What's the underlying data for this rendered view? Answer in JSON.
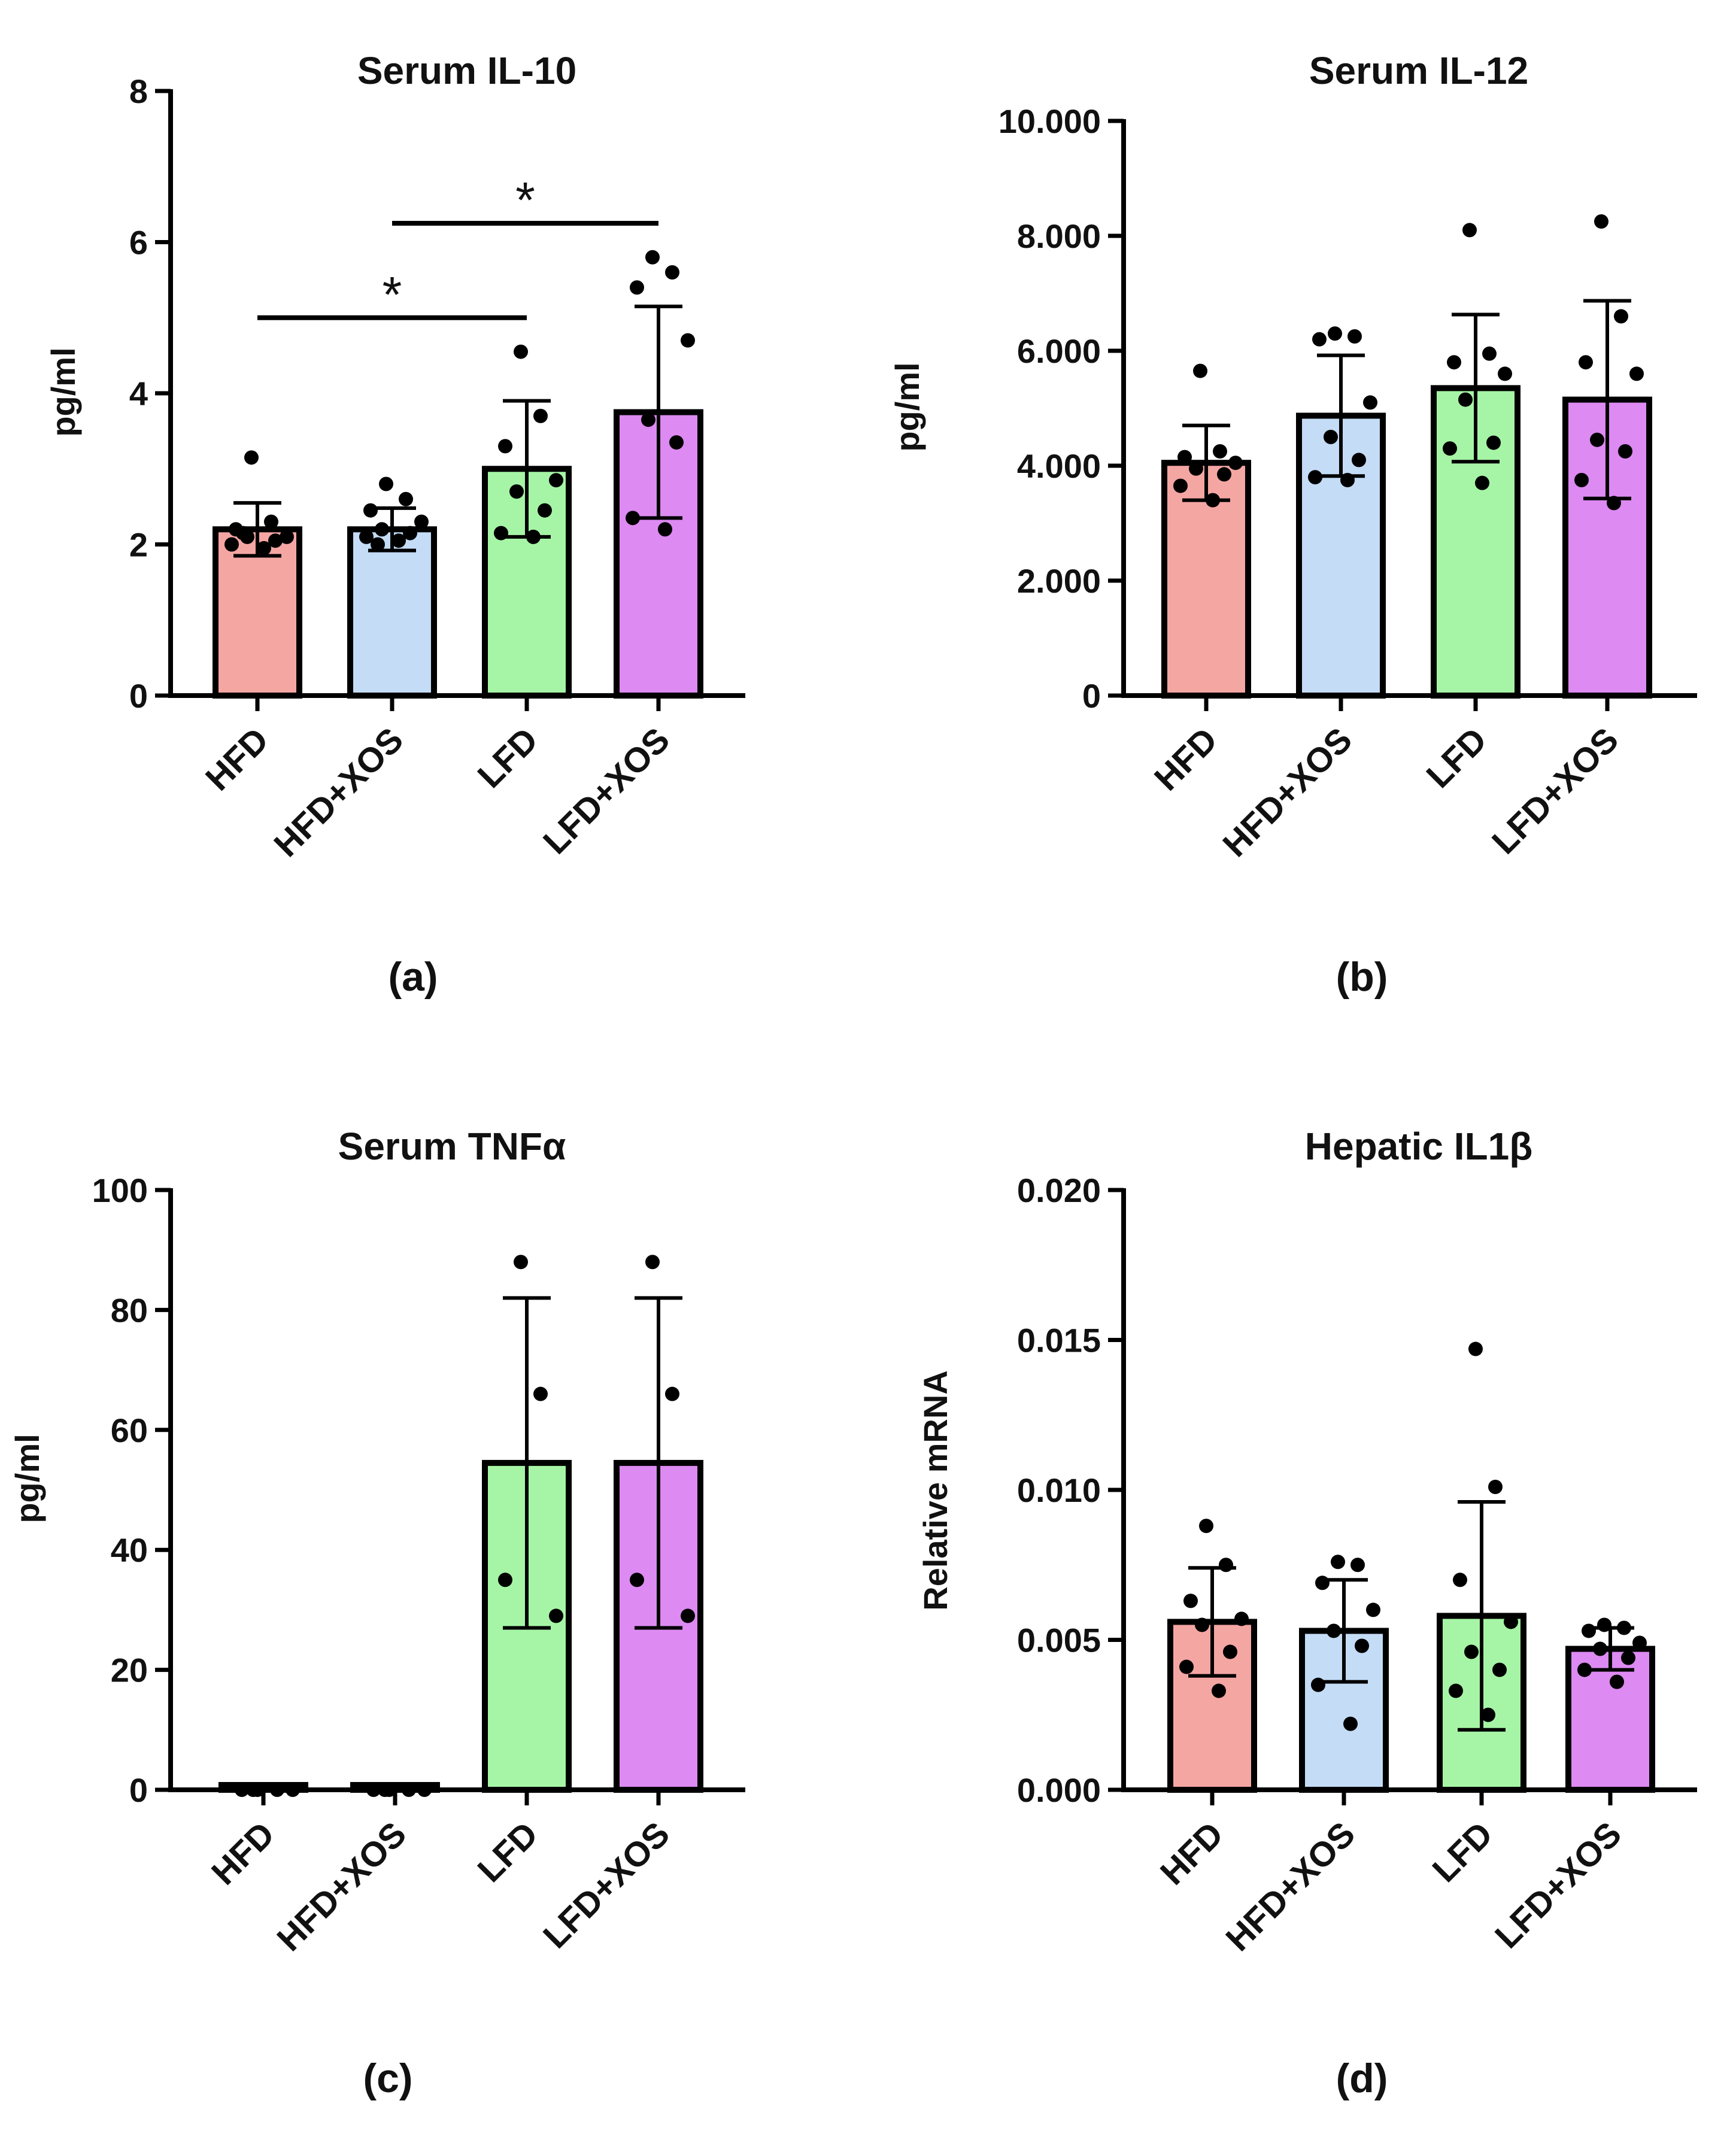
{
  "figure": {
    "type": "figure",
    "panel_count": 4
  },
  "colors": {
    "HFD": "#f4a6a3",
    "HFD+XOS": "#c4dcf6",
    "LFD": "#a6f5a6",
    "LFD+XOS": "#dd8af2",
    "stroke": "#000000"
  },
  "chart_data": [
    {
      "id": "a",
      "type": "bar",
      "title": "Serum IL-10",
      "panel_label": "(a)",
      "ylabel": "pg/ml",
      "xlabel": "",
      "categories": [
        "HFD",
        "HFD+XOS",
        "LFD",
        "LFD+XOS"
      ],
      "ylim": [
        0,
        8
      ],
      "yticks": [
        0,
        2,
        4,
        6,
        8
      ],
      "ytick_labels": [
        "0",
        "2",
        "4",
        "6",
        "8"
      ],
      "values": [
        2.2,
        2.2,
        3.0,
        3.75
      ],
      "error": [
        0.35,
        0.28,
        0.9,
        1.4
      ],
      "points": [
        [
          3.15,
          2.3,
          2.2,
          2.1,
          2.1,
          2.05,
          2.0,
          1.95,
          2.15
        ],
        [
          2.8,
          2.6,
          2.45,
          2.3,
          2.2,
          2.15,
          2.1,
          2.05,
          2.0
        ],
        [
          4.55,
          3.7,
          3.3,
          2.85,
          2.7,
          2.45,
          2.15,
          2.1
        ],
        [
          5.8,
          5.6,
          5.4,
          4.7,
          3.65,
          3.35,
          2.35,
          2.2
        ]
      ],
      "significance": [
        {
          "from": "HFD",
          "to": "LFD",
          "y": 5.0,
          "label": "*"
        },
        {
          "from": "HFD+XOS",
          "to": "LFD+XOS",
          "y": 6.25,
          "label": "*"
        }
      ]
    },
    {
      "id": "b",
      "type": "bar",
      "title": "Serum IL-12",
      "panel_label": "(b)",
      "ylabel": "pg/ml",
      "xlabel": "",
      "categories": [
        "HFD",
        "HFD+XOS",
        "LFD",
        "LFD+XOS"
      ],
      "ylim": [
        0,
        10000
      ],
      "yticks": [
        0,
        2000,
        4000,
        6000,
        8000,
        10000
      ],
      "ytick_labels": [
        "0",
        "2.000",
        "4.000",
        "6.000",
        "8.000",
        "10.000"
      ],
      "values": [
        4050,
        4870,
        5350,
        5150
      ],
      "error": [
        650,
        1050,
        1280,
        1720
      ],
      "points": [
        [
          5650,
          4250,
          4150,
          4050,
          3950,
          3850,
          3650,
          3400
        ],
        [
          6300,
          6250,
          6200,
          5100,
          4500,
          4100,
          3800,
          3750
        ],
        [
          8100,
          5950,
          5800,
          5600,
          5150,
          4400,
          4300,
          3700
        ],
        [
          8250,
          6600,
          5800,
          5600,
          4450,
          4250,
          3750,
          3350
        ]
      ],
      "significance": []
    },
    {
      "id": "c",
      "type": "bar",
      "title": "Serum TNFα",
      "panel_label": "(c)",
      "ylabel": "pg/ml",
      "xlabel": "",
      "categories": [
        "HFD",
        "HFD+XOS",
        "LFD",
        "LFD+XOS"
      ],
      "ylim": [
        0,
        100
      ],
      "yticks": [
        0,
        20,
        40,
        60,
        80,
        100
      ],
      "ytick_labels": [
        "0",
        "20",
        "40",
        "60",
        "80",
        "100"
      ],
      "values": [
        0.8,
        0.8,
        54.5,
        54.5
      ],
      "error": [
        0,
        0,
        27.5,
        27.5
      ],
      "points": [
        [
          0,
          0,
          0,
          0,
          0
        ],
        [
          0,
          0,
          0,
          0,
          0
        ],
        [
          88,
          66,
          35,
          29
        ],
        [
          88,
          66,
          35,
          29
        ]
      ],
      "significance": []
    },
    {
      "id": "d",
      "type": "bar",
      "title": "Hepatic IL1β",
      "panel_label": "(d)",
      "ylabel": "Relative mRNA",
      "xlabel": "",
      "categories": [
        "HFD",
        "HFD+XOS",
        "LFD",
        "LFD+XOS"
      ],
      "ylim": [
        0,
        0.02
      ],
      "yticks": [
        0,
        0.005,
        0.01,
        0.015,
        0.02
      ],
      "ytick_labels": [
        "0.000",
        "0.005",
        "0.010",
        "0.015",
        "0.020"
      ],
      "values": [
        0.0056,
        0.0053,
        0.0058,
        0.0047
      ],
      "error": [
        0.0018,
        0.0017,
        0.0038,
        0.0007
      ],
      "points": [
        [
          0.0088,
          0.0075,
          0.0063,
          0.0057,
          0.0055,
          0.0046,
          0.0041,
          0.0033
        ],
        [
          0.0076,
          0.0075,
          0.0069,
          0.006,
          0.0053,
          0.0048,
          0.0035,
          0.0022
        ],
        [
          0.0147,
          0.0101,
          0.007,
          0.0056,
          0.0046,
          0.004,
          0.0033,
          0.0025
        ],
        [
          0.0055,
          0.0054,
          0.0053,
          0.0049,
          0.0047,
          0.0044,
          0.004,
          0.0036
        ]
      ],
      "significance": []
    }
  ]
}
